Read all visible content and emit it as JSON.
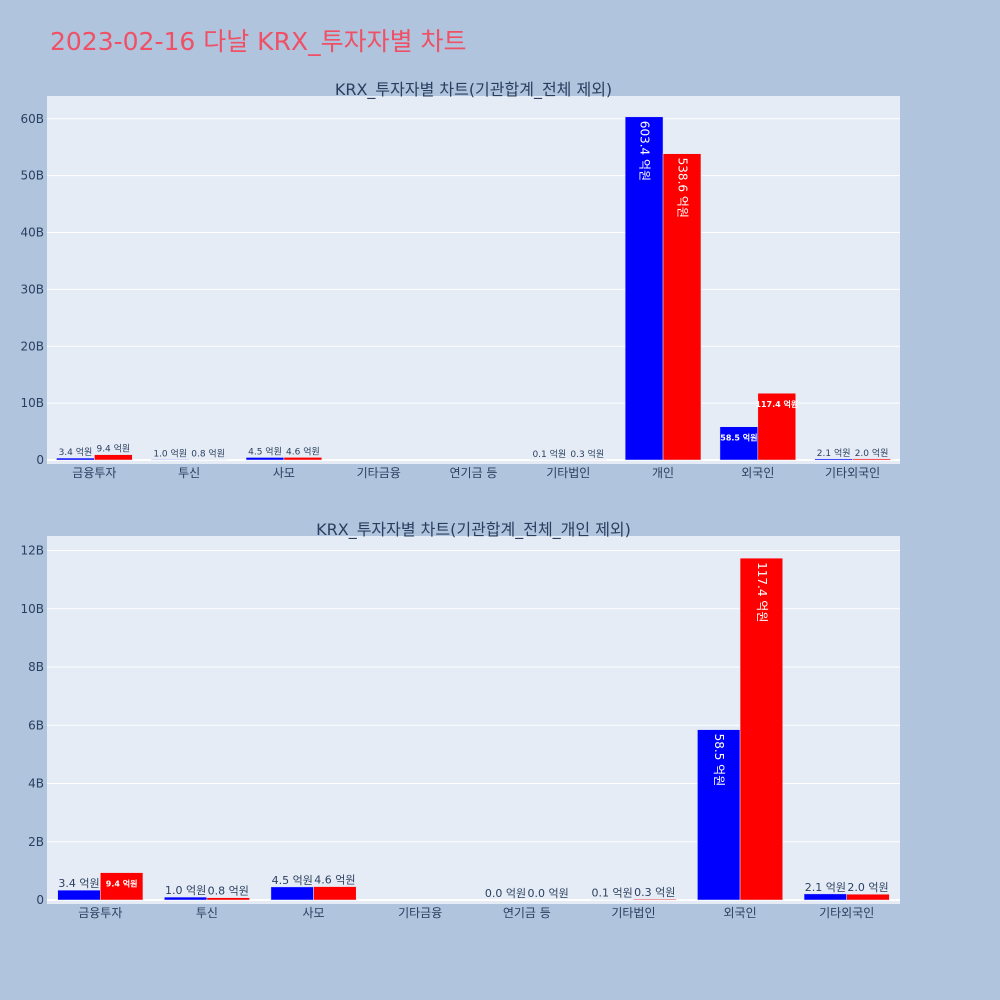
{
  "title": "2023-02-16 다날 KRX_투자자별 차트",
  "colors": {
    "buy": "#0000ff",
    "sell": "#ff0000",
    "plot_bg": "#e5ecf6",
    "page_bg": "#b0c4de",
    "title": "#ef5066"
  },
  "chart_data": [
    {
      "type": "bar",
      "title": "KRX_투자자별 차트(기관합계_전체 제외)",
      "categories": [
        "금융투자",
        "투신",
        "사모",
        "기타금융",
        "연기금 등",
        "기타법인",
        "개인",
        "외국인",
        "기타외국인"
      ],
      "series": [
        {
          "values": [
            340000000,
            100000000,
            450000000,
            0,
            0,
            10000000,
            60340000000,
            5850000000,
            210000000
          ],
          "labels": [
            "3.4 억원",
            "1.0 억원",
            "4.5 억원",
            "",
            "",
            "0.1 억원",
            "603.4 억원",
            "58.5 억원",
            "2.1 억원"
          ]
        },
        {
          "values": [
            940000000,
            80000000,
            460000000,
            0,
            0,
            30000000,
            53860000000,
            11740000000,
            200000000
          ],
          "labels": [
            "9.4 억원",
            "0.8 억원",
            "4.6 억원",
            "",
            "",
            "0.3 억원",
            "538.6 억원",
            "117.4 억원",
            "2.0 억원"
          ]
        }
      ],
      "yticks": [
        0,
        10000000000,
        20000000000,
        30000000000,
        40000000000,
        50000000000,
        60000000000
      ],
      "ytick_labels": [
        "0",
        "10B",
        "20B",
        "30B",
        "40B",
        "50B",
        "60B"
      ],
      "ylim": [
        0,
        64000000000
      ],
      "grid": true,
      "legend": "none"
    },
    {
      "type": "bar",
      "title": "KRX_투자자별 차트(기관합계_전체_개인 제외)",
      "categories": [
        "금융투자",
        "투신",
        "사모",
        "기타금융",
        "연기금 등",
        "기타법인",
        "외국인",
        "기타외국인"
      ],
      "series": [
        {
          "values": [
            340000000,
            100000000,
            450000000,
            0,
            0,
            10000000,
            5850000000,
            210000000
          ],
          "labels": [
            "3.4 억원",
            "1.0 억원",
            "4.5 억원",
            "",
            "0.0 억원",
            "0.1 억원",
            "58.5 억원",
            "2.1 억원"
          ]
        },
        {
          "values": [
            940000000,
            80000000,
            460000000,
            0,
            0,
            30000000,
            11740000000,
            200000000
          ],
          "labels": [
            "9.4 억원",
            "0.8 억원",
            "4.6 억원",
            "",
            "0.0 억원",
            "0.3 억원",
            "117.4 억원",
            "2.0 억원"
          ]
        }
      ],
      "yticks": [
        0,
        2000000000,
        4000000000,
        6000000000,
        8000000000,
        10000000000,
        12000000000
      ],
      "ytick_labels": [
        "0",
        "2B",
        "4B",
        "6B",
        "8B",
        "10B",
        "12B"
      ],
      "ylim": [
        0,
        12500000000
      ],
      "grid": true,
      "legend": "none"
    }
  ]
}
